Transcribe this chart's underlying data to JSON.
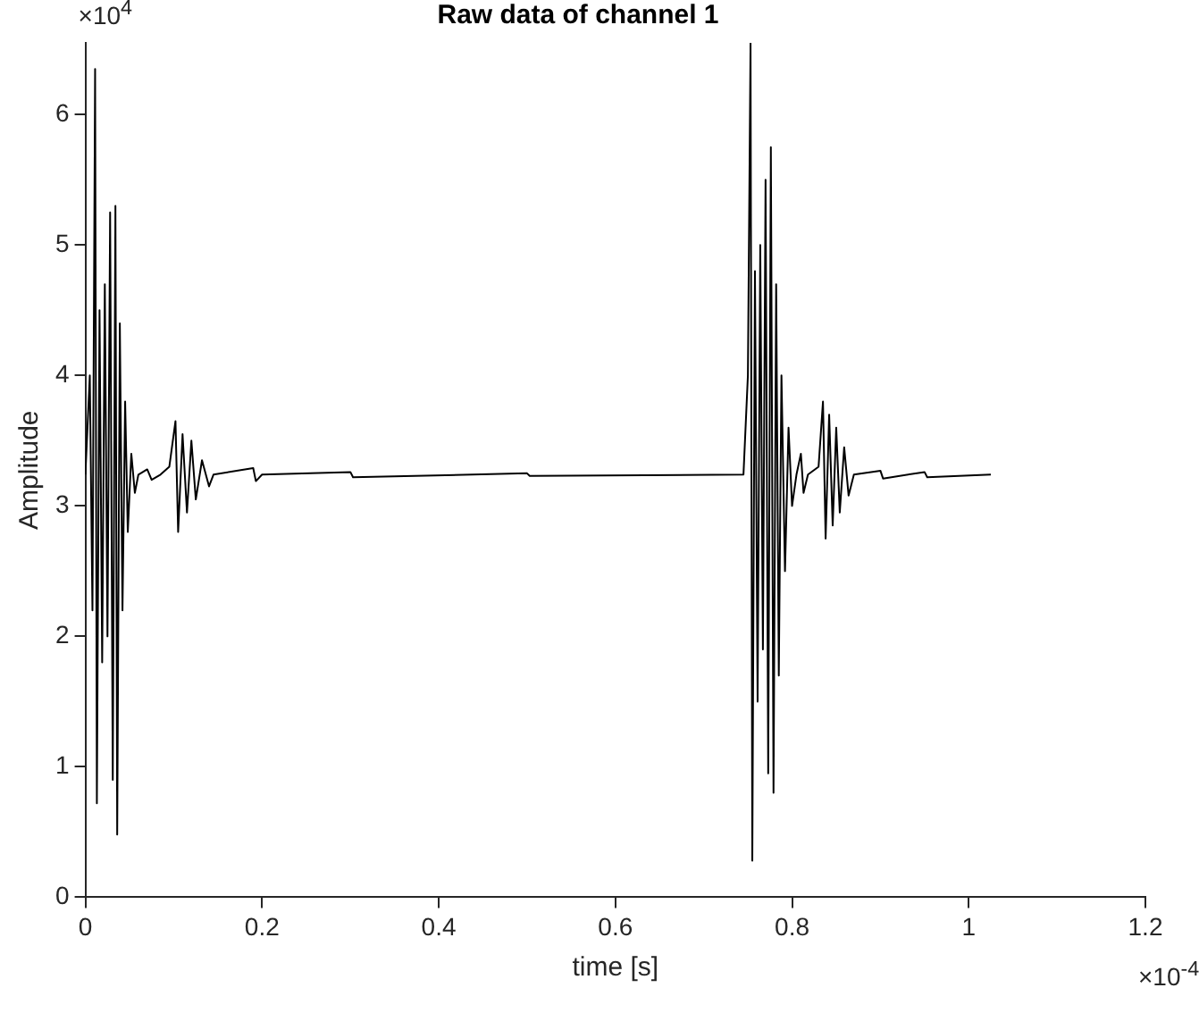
{
  "chart_data": {
    "type": "line",
    "title": "Raw data of channel 1",
    "xlabel": "time [s]",
    "ylabel": "Amplitude",
    "annotations": [
      "×10$^{4}$",
      "×10$^{-4}$"
    ],
    "x": [
      0,
      0.005,
      0.008,
      0.011,
      0.013,
      0.016,
      0.019,
      0.022,
      0.025,
      0.028,
      0.031,
      0.034,
      0.036,
      0.039,
      0.042,
      0.045,
      0.048,
      0.052,
      0.056,
      0.06,
      0.07,
      0.075,
      0.085,
      0.095,
      0.102,
      0.105,
      0.11,
      0.115,
      0.12,
      0.125,
      0.132,
      0.14,
      0.145,
      0.19,
      0.193,
      0.2,
      0.3,
      0.303,
      0.5,
      0.503,
      0.745,
      0.75,
      0.753,
      0.755,
      0.758,
      0.761,
      0.764,
      0.767,
      0.77,
      0.773,
      0.776,
      0.779,
      0.782,
      0.785,
      0.788,
      0.792,
      0.796,
      0.8,
      0.805,
      0.81,
      0.813,
      0.818,
      0.83,
      0.835,
      0.838,
      0.842,
      0.846,
      0.85,
      0.854,
      0.859,
      0.864,
      0.87,
      0.9,
      0.903,
      0.95,
      0.953,
      1.025
    ],
    "series": [
      {
        "color": "#000000",
        "values": [
          3.24,
          4.0,
          2.2,
          6.35,
          0.72,
          4.5,
          1.8,
          4.7,
          2.0,
          5.25,
          0.9,
          5.3,
          0.48,
          4.4,
          2.2,
          3.8,
          2.8,
          3.4,
          3.1,
          3.24,
          3.28,
          3.2,
          3.24,
          3.3,
          3.65,
          2.8,
          3.55,
          2.95,
          3.5,
          3.05,
          3.35,
          3.15,
          3.24,
          3.29,
          3.19,
          3.24,
          3.26,
          3.22,
          3.25,
          3.23,
          3.24,
          4.0,
          6.55,
          0.28,
          4.8,
          1.5,
          5.0,
          1.9,
          5.5,
          0.95,
          5.75,
          0.8,
          4.7,
          1.7,
          4.0,
          2.5,
          3.6,
          3.0,
          3.24,
          3.4,
          3.1,
          3.24,
          3.3,
          3.8,
          2.75,
          3.7,
          2.85,
          3.6,
          2.95,
          3.45,
          3.08,
          3.24,
          3.27,
          3.21,
          3.26,
          3.22,
          3.24
        ]
      }
    ],
    "xlim": [
      0,
      1.2
    ],
    "xticks": [
      0,
      0.2,
      0.4,
      0.6,
      0.8,
      1,
      1.2
    ],
    "ylim": [
      0,
      6.55
    ],
    "yticks": [
      0,
      1,
      2,
      3,
      4,
      5,
      6
    ],
    "grid": false,
    "legend": false,
    "marker": "none",
    "line_style": "solid"
  }
}
